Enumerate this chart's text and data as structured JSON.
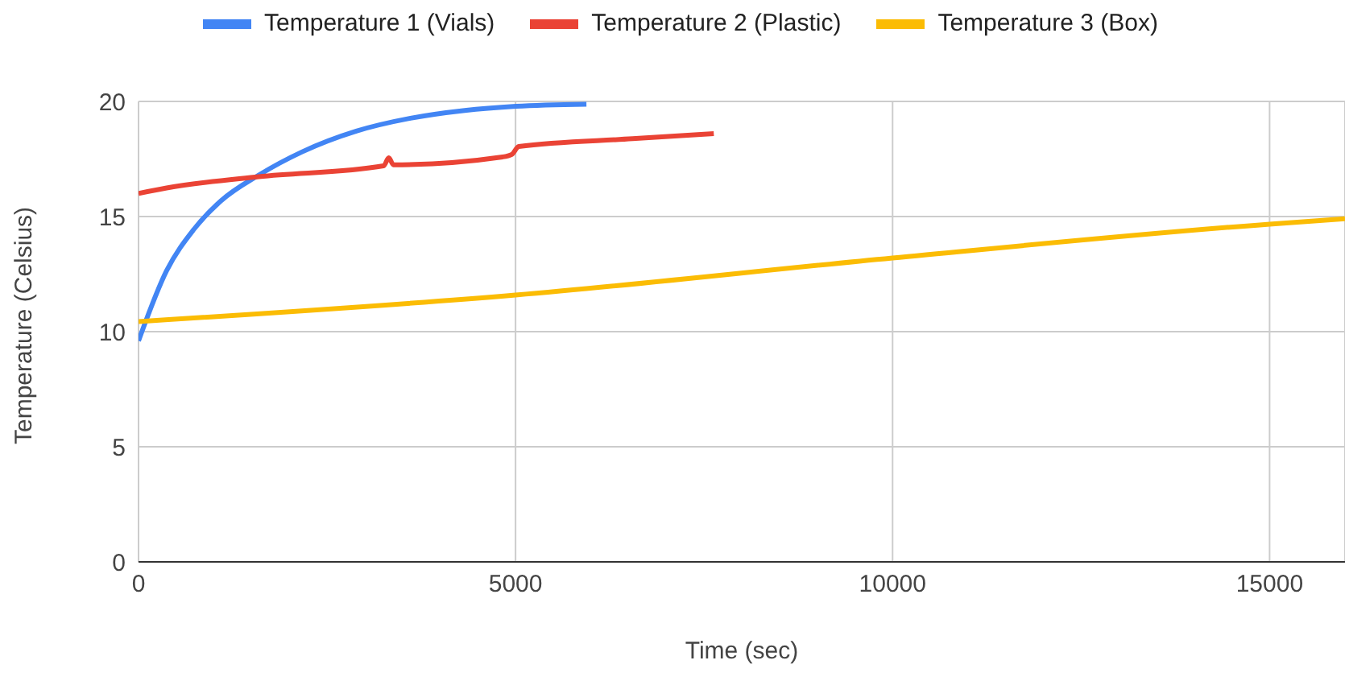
{
  "chart_data": {
    "type": "line",
    "xlabel": "Time (sec)",
    "ylabel": "Temperature (Celsius)",
    "xlim": [
      0,
      16000
    ],
    "xticks": [
      0,
      5000,
      10000,
      15000
    ],
    "ylim": [
      0,
      20
    ],
    "yticks": [
      0,
      5,
      10,
      15,
      20
    ],
    "grid": true,
    "legend": "top",
    "marker": "none",
    "line_style": "solid",
    "series": [
      {
        "name": "Temperature 1 (Vials)",
        "color": "#4285f4",
        "x": [
          0,
          373,
          733,
          1093,
          1595,
          2170,
          2888,
          3606,
          4325,
          5006,
          5940
        ],
        "values": [
          9.6,
          12.65,
          14.44,
          15.68,
          16.8,
          17.81,
          18.71,
          19.27,
          19.61,
          19.79,
          19.88
        ]
      },
      {
        "name": "Temperature 2 (Plastic)",
        "color": "#ea4335",
        "x": [
          0,
          373,
          1595,
          3250,
          3319,
          3380,
          4828,
          4950,
          5043,
          6552,
          7629
        ],
        "values": [
          16.0,
          16.24,
          16.73,
          17.2,
          17.55,
          17.25,
          17.59,
          17.7,
          18.04,
          18.38,
          18.6
        ]
      },
      {
        "name": "Temperature 3 (Box)",
        "color": "#fbbc04",
        "x": [
          0,
          5000,
          10000,
          15000,
          16000
        ],
        "values": [
          10.44,
          11.59,
          13.2,
          14.67,
          14.9
        ]
      }
    ]
  }
}
